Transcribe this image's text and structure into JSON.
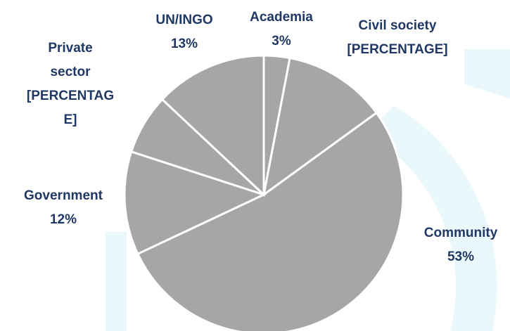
{
  "chart_data": {
    "type": "pie",
    "categories": [
      "Academia",
      "Civil society",
      "Community",
      "Government",
      "Private sector",
      "UN/INGO"
    ],
    "values": [
      3,
      12,
      53,
      12,
      7,
      13
    ],
    "value_labels": [
      "3%",
      "[PERCENTAGE]",
      "53%",
      "12%",
      "[PERCENTAGE]",
      "13%"
    ],
    "color": "#a6a6a6"
  }
}
